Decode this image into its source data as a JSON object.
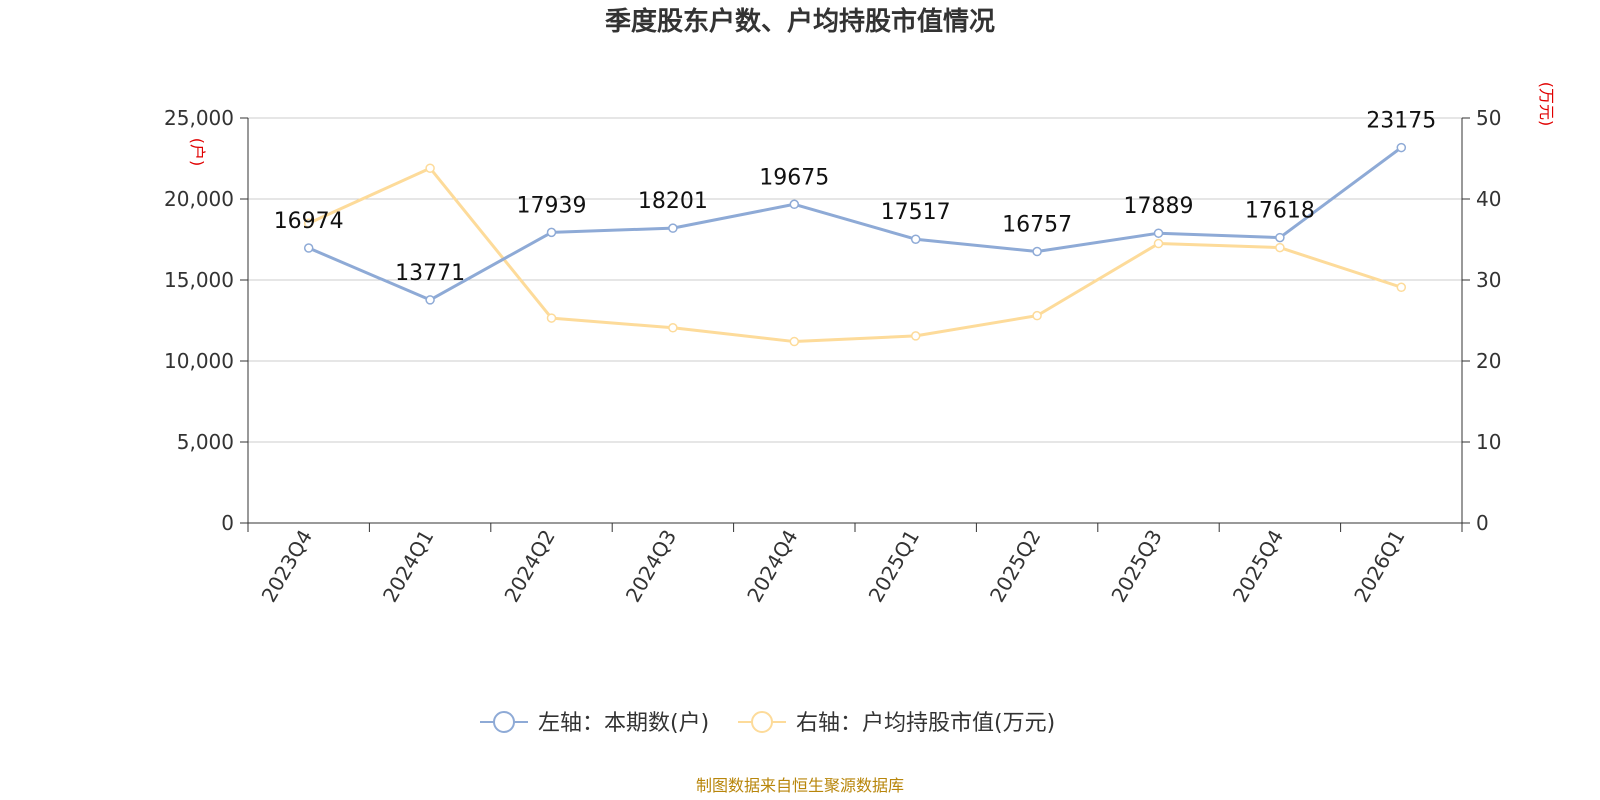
{
  "chart_data": {
    "type": "line",
    "title": "季度股东户数、户均持股市值情况",
    "categories": [
      "2023Q4",
      "2024Q1",
      "2024Q2",
      "2024Q3",
      "2024Q4",
      "2025Q1",
      "2025Q2",
      "2025Q3",
      "2025Q4",
      "2026Q1"
    ],
    "y_left": {
      "unit": "(户)",
      "min": 0,
      "max": 25000,
      "ticks": [
        0,
        5000,
        10000,
        15000,
        20000,
        25000
      ],
      "tick_labels": [
        "0",
        "5,000",
        "10,000",
        "15,000",
        "20,000",
        "25,000"
      ]
    },
    "y_right": {
      "unit": "(万元)",
      "min": 0,
      "max": 50,
      "ticks": [
        0,
        10,
        20,
        30,
        40,
        50
      ],
      "tick_labels": [
        "0",
        "10",
        "20",
        "30",
        "40",
        "50"
      ]
    },
    "series": [
      {
        "name": "左轴：本期数(户)",
        "axis": "left",
        "color": "#8eaad6",
        "values": [
          16974,
          13771,
          17939,
          18201,
          19675,
          17517,
          16757,
          17889,
          17618,
          23175
        ],
        "labels": [
          "16974",
          "13771",
          "17939",
          "18201",
          "19675",
          "17517",
          "16757",
          "17889",
          "17618",
          "23175"
        ]
      },
      {
        "name": "右轴：户均持股市值(万元)",
        "axis": "right",
        "color": "#fddb9a",
        "values": [
          37.0,
          43.8,
          25.3,
          24.1,
          22.4,
          23.1,
          25.6,
          34.5,
          34.0,
          29.1
        ]
      }
    ],
    "grid": true,
    "legend_position": "bottom-center",
    "source": "制图数据来自恒生聚源数据库"
  }
}
